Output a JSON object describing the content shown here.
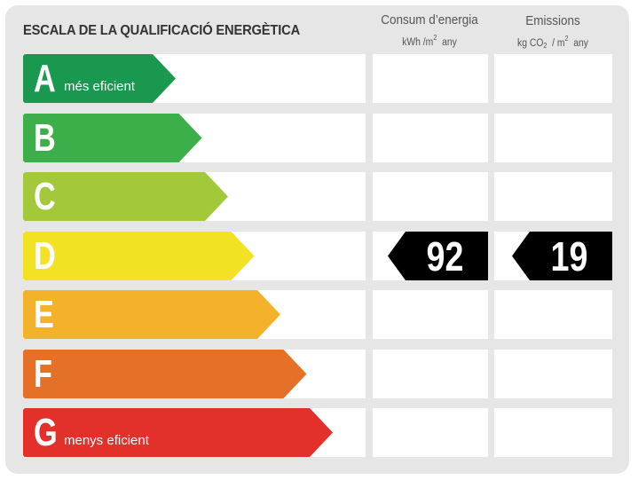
{
  "title": "ESCALA DE LA QUALIFICACIÓ ENERGÈTICA",
  "columns": {
    "energy": {
      "title": "Consum d’energia",
      "unit_prefix": "kWh /m",
      "unit_sup": "2",
      "unit_suffix": "  any"
    },
    "emissions": {
      "title": "Emissions",
      "unit_prefix": "kg CO",
      "unit_sub": "2",
      "unit_mid": "  / m",
      "unit_sup": "2",
      "unit_suffix": "  any"
    }
  },
  "classes": [
    {
      "letter": "A",
      "label": "més eficient",
      "color": "#1a9850"
    },
    {
      "letter": "B",
      "label": "",
      "color": "#3daf4a"
    },
    {
      "letter": "C",
      "label": "",
      "color": "#a3c93a"
    },
    {
      "letter": "D",
      "label": "",
      "color": "#f2e223"
    },
    {
      "letter": "E",
      "label": "",
      "color": "#f4b12a"
    },
    {
      "letter": "F",
      "label": "",
      "color": "#e57128"
    },
    {
      "letter": "G",
      "label": "menys eficient",
      "color": "#e3302a"
    }
  ],
  "rating": {
    "class": "D",
    "energy_value": "92",
    "emissions_value": "19",
    "badge_color": "#000000"
  }
}
